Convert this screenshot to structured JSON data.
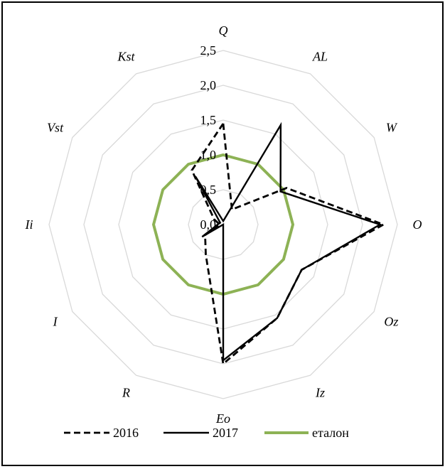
{
  "chart_data": {
    "type": "radar",
    "categories": [
      "Q",
      "AL",
      "W",
      "O",
      "Oz",
      "Iz",
      "Eo",
      "R",
      "I",
      "Ii",
      "Vst",
      "Kst"
    ],
    "ticks": [
      "0,0",
      "0,5",
      "1,0",
      "1,5",
      "2,0",
      "2,5"
    ],
    "rlim": [
      0,
      2.5
    ],
    "grid": true,
    "legend_position": "bottom",
    "series": [
      {
        "name": "2016",
        "values": [
          1.45,
          0.25,
          1.05,
          2.3,
          1.3,
          1.55,
          2.0,
          0.5,
          0.3,
          0.05,
          0.15,
          0.9
        ],
        "color": "#000000",
        "style": "dashed"
      },
      {
        "name": "2017",
        "values": [
          0.05,
          1.65,
          0.95,
          2.25,
          1.3,
          1.55,
          1.95,
          0.0,
          0.35,
          0.08,
          0.05,
          0.8
        ],
        "color": "#000000",
        "style": "solid"
      },
      {
        "name": "еталон",
        "values": [
          1,
          1,
          1,
          1,
          1,
          1,
          1,
          1,
          1,
          1,
          1,
          1
        ],
        "color": "#8db255",
        "style": "solid"
      }
    ],
    "gridline_color": "#d9d9d9"
  }
}
